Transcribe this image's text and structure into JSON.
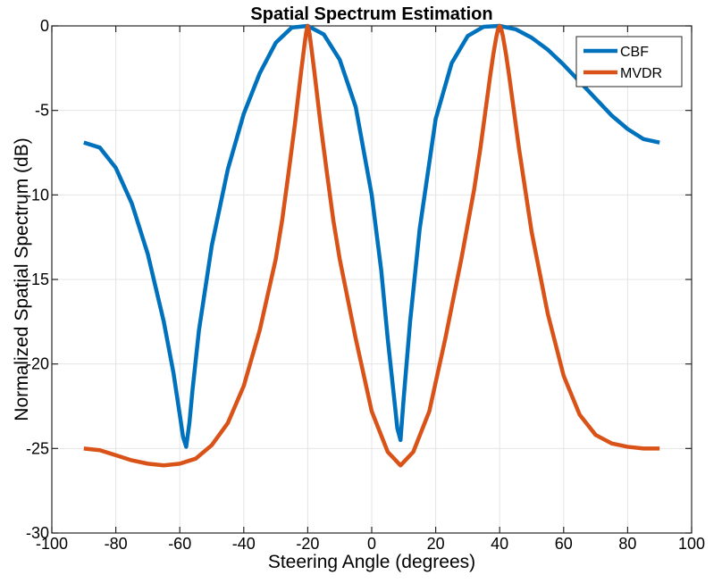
{
  "chart_data": {
    "type": "line",
    "title": "Spatial Spectrum Estimation",
    "xlabel": "Steering Angle (degrees)",
    "ylabel": "Normalized Spatial Spectrum (dB)",
    "xlim": [
      -100,
      100
    ],
    "ylim": [
      -30,
      0
    ],
    "xticks": [
      -100,
      -80,
      -60,
      -40,
      -20,
      0,
      20,
      40,
      60,
      80,
      100
    ],
    "yticks": [
      -30,
      -25,
      -20,
      -15,
      -10,
      -5,
      0
    ],
    "xtick_labels": [
      "-100",
      "-80",
      "-60",
      "-40",
      "-20",
      "0",
      "20",
      "40",
      "60",
      "80",
      "100"
    ],
    "ytick_labels": [
      "-30",
      "-25",
      "-20",
      "-15",
      "-10",
      "-5",
      "0"
    ],
    "grid": true,
    "legend": "top-right",
    "series": [
      {
        "name": "CBF",
        "color": "#0072BD",
        "x": [
          -90,
          -85,
          -80,
          -75,
          -70,
          -65,
          -62,
          -60,
          -59,
          -58,
          -57,
          -56,
          -54,
          -50,
          -45,
          -40,
          -35,
          -30,
          -25,
          -20,
          -15,
          -10,
          -5,
          0,
          3,
          5,
          7,
          8,
          9,
          10,
          12,
          15,
          20,
          25,
          30,
          35,
          40,
          45,
          50,
          55,
          60,
          65,
          70,
          75,
          80,
          85,
          90
        ],
        "y": [
          -6.9,
          -7.2,
          -8.4,
          -10.5,
          -13.5,
          -17.5,
          -20.5,
          -23.0,
          -24.3,
          -24.9,
          -23.5,
          -21.5,
          -18.0,
          -13.0,
          -8.5,
          -5.2,
          -2.8,
          -1.0,
          -0.1,
          0.0,
          -0.5,
          -2.0,
          -4.8,
          -10.0,
          -14.5,
          -18.5,
          -22.0,
          -23.8,
          -24.5,
          -22.0,
          -17.5,
          -12.0,
          -5.5,
          -2.2,
          -0.6,
          -0.05,
          0.0,
          -0.2,
          -0.7,
          -1.4,
          -2.3,
          -3.3,
          -4.3,
          -5.3,
          -6.1,
          -6.7,
          -6.9
        ]
      },
      {
        "name": "MVDR",
        "color": "#D95319",
        "x": [
          -90,
          -85,
          -80,
          -75,
          -70,
          -65,
          -60,
          -55,
          -50,
          -45,
          -40,
          -35,
          -30,
          -28,
          -26,
          -24,
          -23,
          -22,
          -21,
          -20.5,
          -20,
          -19.5,
          -19,
          -18,
          -17,
          -16,
          -14,
          -12,
          -10,
          -5,
          0,
          5,
          9,
          13,
          18,
          23,
          28,
          32,
          34,
          36,
          37,
          38,
          39,
          39.5,
          40,
          40.5,
          41,
          42,
          43,
          44,
          46,
          48,
          50,
          55,
          60,
          65,
          70,
          75,
          80,
          85,
          90
        ],
        "y": [
          -25.0,
          -25.1,
          -25.4,
          -25.7,
          -25.9,
          -26.0,
          -25.9,
          -25.6,
          -24.8,
          -23.5,
          -21.3,
          -18.0,
          -13.8,
          -11.5,
          -8.7,
          -5.8,
          -4.2,
          -2.6,
          -1.1,
          -0.4,
          0.0,
          -0.4,
          -1.1,
          -2.6,
          -4.2,
          -5.8,
          -8.7,
          -11.5,
          -13.8,
          -18.5,
          -22.8,
          -25.2,
          -26.0,
          -25.2,
          -22.8,
          -18.5,
          -13.8,
          -9.7,
          -7.2,
          -4.4,
          -3.0,
          -1.7,
          -0.6,
          -0.2,
          0.0,
          -0.2,
          -0.6,
          -1.7,
          -3.0,
          -4.4,
          -7.2,
          -9.7,
          -12.2,
          -17.0,
          -20.7,
          -23.0,
          -24.2,
          -24.7,
          -24.9,
          -25.0,
          -25.0
        ]
      }
    ]
  }
}
